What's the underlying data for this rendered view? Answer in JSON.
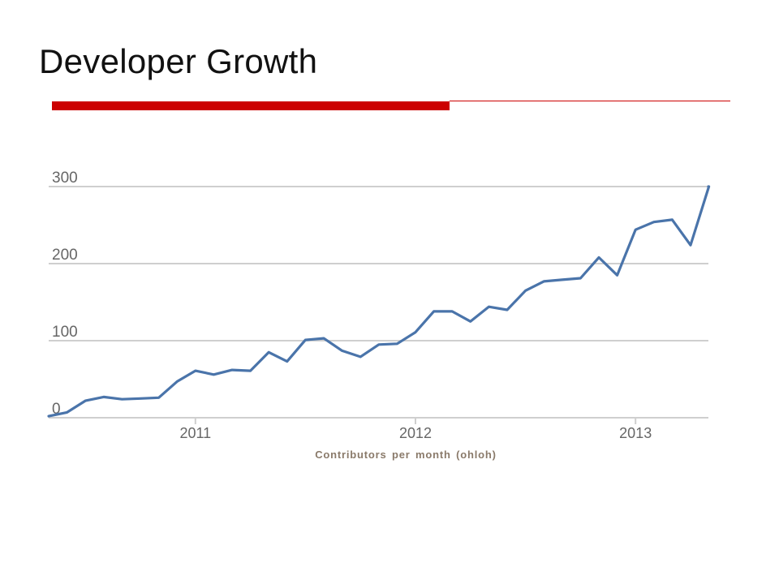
{
  "slide": {
    "title": "Developer Growth",
    "caption": "Contributors per month (ohloh)",
    "accent_color": "#cc0000"
  },
  "chart_data": {
    "type": "line",
    "title": "",
    "xlabel": "",
    "ylabel": "",
    "ylim": [
      0,
      300
    ],
    "y_ticks": [
      "0",
      "100",
      "200",
      "300"
    ],
    "x_ticks": [
      "2011",
      "2012",
      "2013"
    ],
    "grid": true,
    "legend": "none",
    "line_color": "#4a74aa",
    "series": [
      {
        "x": [
          "2010-05",
          "2010-06",
          "2010-07",
          "2010-08",
          "2010-09",
          "2010-10",
          "2010-11",
          "2010-12",
          "2011-01",
          "2011-02",
          "2011-03",
          "2011-04",
          "2011-05",
          "2011-06",
          "2011-07",
          "2011-08",
          "2011-09",
          "2011-10",
          "2011-11",
          "2011-12",
          "2012-01",
          "2012-02",
          "2012-03",
          "2012-04",
          "2012-05",
          "2012-06",
          "2012-07",
          "2012-08",
          "2012-09",
          "2012-10",
          "2012-11",
          "2012-12",
          "2013-01",
          "2013-02",
          "2013-03",
          "2013-04",
          "2013-05",
          "2013-06"
        ],
        "values": [
          2,
          7,
          22,
          27,
          24,
          25,
          26,
          47,
          61,
          56,
          62,
          61,
          85,
          73,
          101,
          103,
          87,
          79,
          95,
          96,
          111,
          138,
          138,
          125,
          144,
          140,
          165,
          177,
          179,
          181,
          208,
          185,
          244,
          254,
          257,
          224,
          300,
          300
        ]
      }
    ]
  }
}
